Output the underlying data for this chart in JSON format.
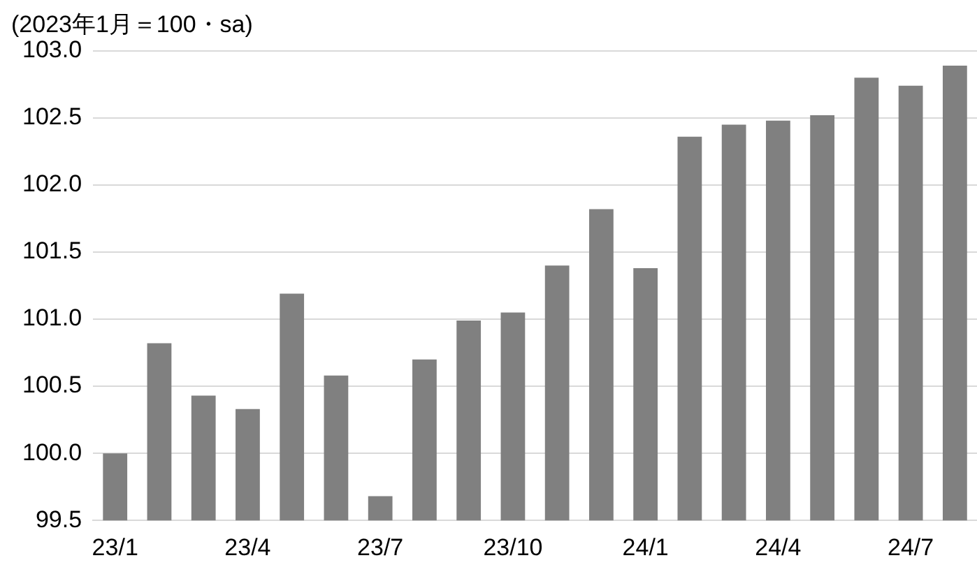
{
  "chart_data": {
    "type": "bar",
    "title": "(2023年1月＝100・sa)",
    "categories": [
      "23/1",
      null,
      null,
      "23/4",
      null,
      null,
      "23/7",
      null,
      null,
      "23/10",
      null,
      null,
      "24/1",
      null,
      null,
      "24/4",
      null,
      null,
      "24/7",
      null
    ],
    "values": [
      100.0,
      100.82,
      100.43,
      100.33,
      101.19,
      100.58,
      99.68,
      100.7,
      100.99,
      101.05,
      101.4,
      101.82,
      101.38,
      102.36,
      102.45,
      102.48,
      102.52,
      102.8,
      102.74,
      102.89
    ],
    "color": "#808080",
    "ylim": [
      99.5,
      103.0
    ],
    "yticks": [
      {
        "value": 99.5,
        "label": "99.5"
      },
      {
        "value": 100,
        "label": "100.0"
      },
      {
        "value": 100.5,
        "label": "100.5"
      },
      {
        "value": 101,
        "label": "101.0"
      },
      {
        "value": 101.5,
        "label": "101.5"
      },
      {
        "value": 102,
        "label": "102.0"
      },
      {
        "value": 102.5,
        "label": "102.5"
      },
      {
        "value": 103,
        "label": "103.0"
      }
    ],
    "grid": "y"
  }
}
